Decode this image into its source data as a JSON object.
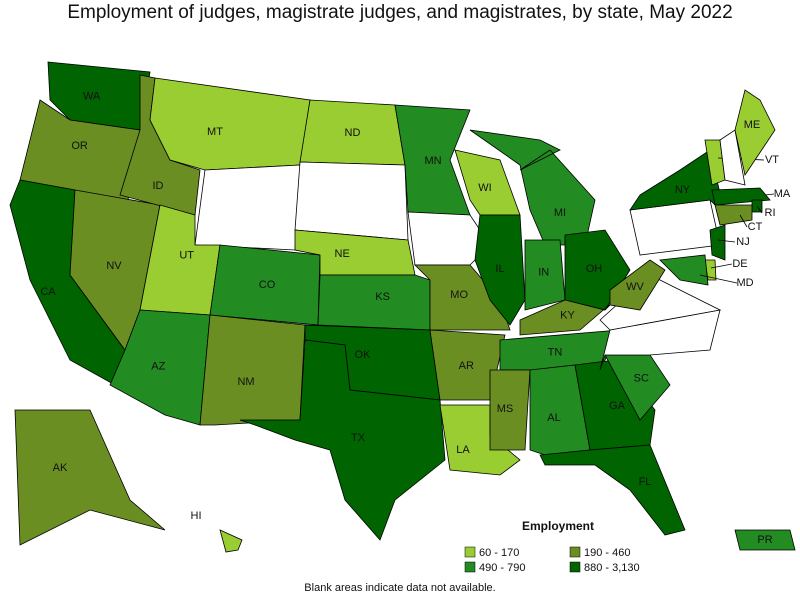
{
  "title": "Employment of judges, magistrate judges, and magistrates, by state, May 2022",
  "legend": {
    "title": "Employment",
    "items": [
      {
        "label": "60 - 170",
        "color": "#9acd32"
      },
      {
        "label": "190 - 460",
        "color": "#6b8e23"
      },
      {
        "label": "490 - 790",
        "color": "#228b22"
      },
      {
        "label": "880 - 3,130",
        "color": "#006400"
      }
    ]
  },
  "states": [
    {
      "abbr": "WA",
      "color": "#006400"
    },
    {
      "abbr": "OR",
      "color": "#6b8e23"
    },
    {
      "abbr": "CA",
      "color": "#006400"
    },
    {
      "abbr": "NV",
      "color": "#6b8e23"
    },
    {
      "abbr": "ID",
      "color": "#6b8e23"
    },
    {
      "abbr": "MT",
      "color": "#9acd32"
    },
    {
      "color": "#ffffff"
    },
    {
      "abbr": "UT",
      "color": "#9acd32"
    },
    {
      "abbr": "AZ",
      "color": "#228b22"
    },
    {
      "abbr": "CO",
      "color": "#228b22"
    },
    {
      "abbr": "NM",
      "color": "#6b8e23"
    },
    {
      "abbr": "ND",
      "color": "#9acd32"
    },
    {
      "color": "#ffffff"
    },
    {
      "abbr": "NE",
      "color": "#9acd32"
    },
    {
      "abbr": "KS",
      "color": "#228b22"
    },
    {
      "abbr": "OK",
      "color": "#006400"
    },
    {
      "abbr": "TX",
      "color": "#006400"
    },
    {
      "abbr": "MN",
      "color": "#228b22"
    },
    {
      "color": "#ffffff"
    },
    {
      "abbr": "MO",
      "color": "#6b8e23"
    },
    {
      "abbr": "AR",
      "color": "#6b8e23"
    },
    {
      "abbr": "LA",
      "color": "#9acd32"
    },
    {
      "abbr": "WI",
      "color": "#9acd32"
    },
    {
      "abbr": "IL",
      "color": "#006400"
    },
    {
      "abbr": "MI",
      "color": "#228b22"
    },
    {
      "abbr": "IN",
      "color": "#228b22"
    },
    {
      "abbr": "OH",
      "color": "#006400"
    },
    {
      "abbr": "KY",
      "color": "#6b8e23"
    },
    {
      "abbr": "TN",
      "color": "#228b22"
    },
    {
      "abbr": "MS",
      "color": "#6b8e23"
    },
    {
      "abbr": "AL",
      "color": "#228b22"
    },
    {
      "abbr": "GA",
      "color": "#006400"
    },
    {
      "abbr": "FL",
      "color": "#006400"
    },
    {
      "abbr": "SC",
      "color": "#228b22"
    },
    {
      "color": "#ffffff"
    },
    {
      "color": "#ffffff"
    },
    {
      "abbr": "WV",
      "color": "#6b8e23"
    },
    {
      "color": "#ffffff"
    },
    {
      "abbr": "NY",
      "color": "#006400"
    },
    {
      "abbr": "VT",
      "color": "#9acd32"
    },
    {
      "color": "#ffffff"
    },
    {
      "abbr": "ME",
      "color": "#9acd32"
    },
    {
      "abbr": "MA",
      "color": "#006400"
    },
    {
      "abbr": "RI",
      "color": "#006400"
    },
    {
      "abbr": "CT",
      "color": "#6b8e23"
    },
    {
      "abbr": "NJ",
      "color": "#006400"
    },
    {
      "abbr": "DE",
      "color": "#9acd32"
    },
    {
      "abbr": "MD",
      "color": "#228b22"
    },
    {
      "abbr": "AK",
      "color": "#6b8e23"
    },
    {
      "abbr": "HI",
      "color": "#9acd32"
    },
    {
      "abbr": "PR",
      "color": "#228b22"
    }
  ],
  "note": "Blank areas indicate data not available."
}
